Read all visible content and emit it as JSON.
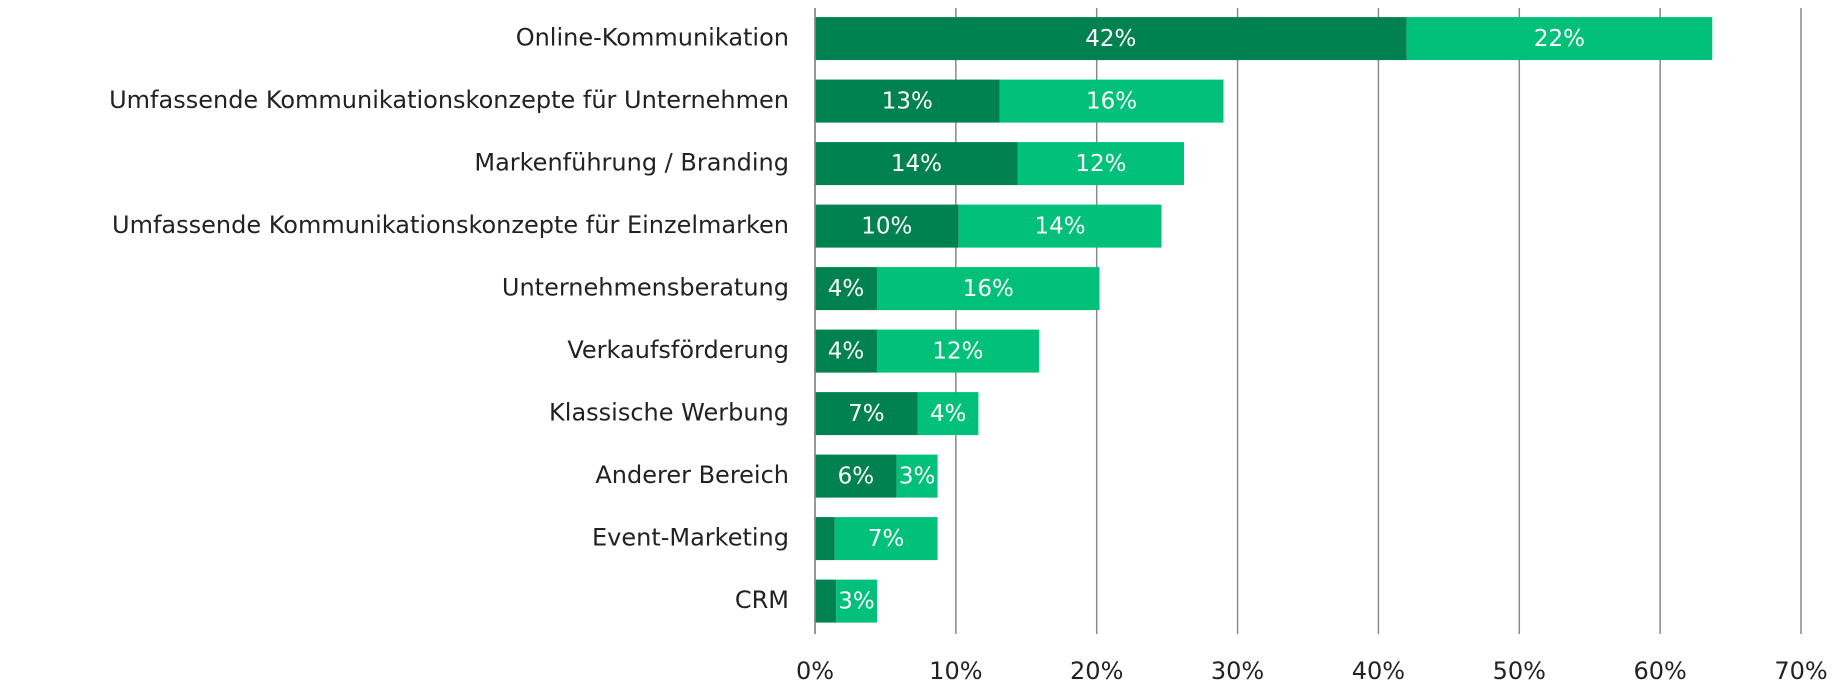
{
  "chart_data": {
    "type": "stacked_barh",
    "categories": [
      "Online-Kommunikation",
      "Umfassende Kommunikationskonzepte für Unternehmen",
      "Markenführung / Branding",
      "Umfassende Kommunikationskonzepte für Einzelmarken",
      "Unternehmensberatung",
      "Verkaufsförderung",
      "Klassische Werbung",
      "Anderer Bereich",
      "Event-Marketing",
      "CRM"
    ],
    "series": [
      {
        "color": "#008150",
        "values": [
          42,
          13.1,
          14.4,
          10.2,
          4.4,
          4.4,
          7.3,
          5.8,
          1.4,
          1.5
        ],
        "value_labels": [
          "42%",
          "13%",
          "14%",
          "10%",
          "4%",
          "4%",
          "7%",
          "6%",
          null,
          null
        ]
      },
      {
        "color": "#00c07a",
        "values": [
          21.7,
          15.9,
          11.8,
          14.4,
          15.8,
          11.5,
          4.3,
          2.9,
          7.3,
          2.9
        ],
        "value_labels": [
          "22%",
          "16%",
          "12%",
          "14%",
          "16%",
          "12%",
          "4%",
          "3%",
          "7%",
          "3%"
        ]
      }
    ],
    "xlim": [
      0,
      70
    ],
    "xticks": [
      {
        "value": 0,
        "label": "0%"
      },
      {
        "value": 10,
        "label": "10%"
      },
      {
        "value": 20,
        "label": "20%"
      },
      {
        "value": 30,
        "label": "30%"
      },
      {
        "value": 40,
        "label": "40%"
      },
      {
        "value": 50,
        "label": "50%"
      },
      {
        "value": 60,
        "label": "60%"
      },
      {
        "value": 70,
        "label": "70%"
      }
    ],
    "grid": true
  }
}
